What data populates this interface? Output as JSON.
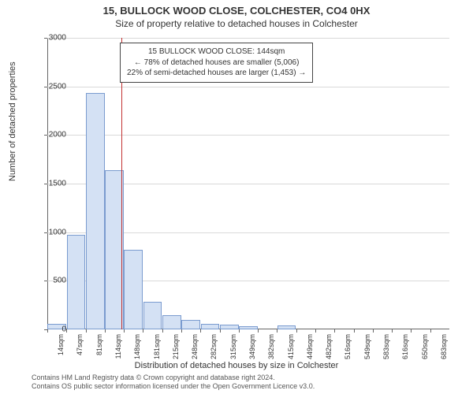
{
  "title": "15, BULLOCK WOOD CLOSE, COLCHESTER, CO4 0HX",
  "subtitle": "Size of property relative to detached houses in Colchester",
  "chart": {
    "type": "histogram",
    "background_color": "#ffffff",
    "grid_color": "#d9d9d9",
    "axis_color": "#666666",
    "bar_fill": "#d4e1f4",
    "bar_border": "#7a9bcf",
    "marker_color": "#c23030",
    "y": {
      "title": "Number of detached properties",
      "min": 0,
      "max": 3000,
      "step": 500,
      "ticks": [
        0,
        500,
        1000,
        1500,
        2000,
        2500,
        3000
      ],
      "label_fontsize": 10,
      "title_fontsize": 11
    },
    "x": {
      "title": "Distribution of detached houses by size in Colchester",
      "labels": [
        "14sqm",
        "47sqm",
        "81sqm",
        "114sqm",
        "148sqm",
        "181sqm",
        "215sqm",
        "248sqm",
        "282sqm",
        "315sqm",
        "349sqm",
        "382sqm",
        "415sqm",
        "449sqm",
        "482sqm",
        "516sqm",
        "549sqm",
        "583sqm",
        "616sqm",
        "650sqm",
        "683sqm"
      ],
      "label_fontsize": 9,
      "title_fontsize": 11
    },
    "bars": [
      60,
      975,
      2430,
      1640,
      820,
      280,
      150,
      100,
      60,
      50,
      30,
      0,
      40,
      0,
      0,
      0,
      0,
      0,
      0,
      0,
      0
    ],
    "marker": {
      "position_category_index": 3.88,
      "box": {
        "line1": "15 BULLOCK WOOD CLOSE: 144sqm",
        "line2": "← 78% of detached houses are smaller (5,006)",
        "line3": "22% of semi-detached houses are larger (1,453) →"
      }
    }
  },
  "footer": {
    "line1": "Contains HM Land Registry data © Crown copyright and database right 2024.",
    "line2": "Contains OS public sector information licensed under the Open Government Licence v3.0."
  }
}
